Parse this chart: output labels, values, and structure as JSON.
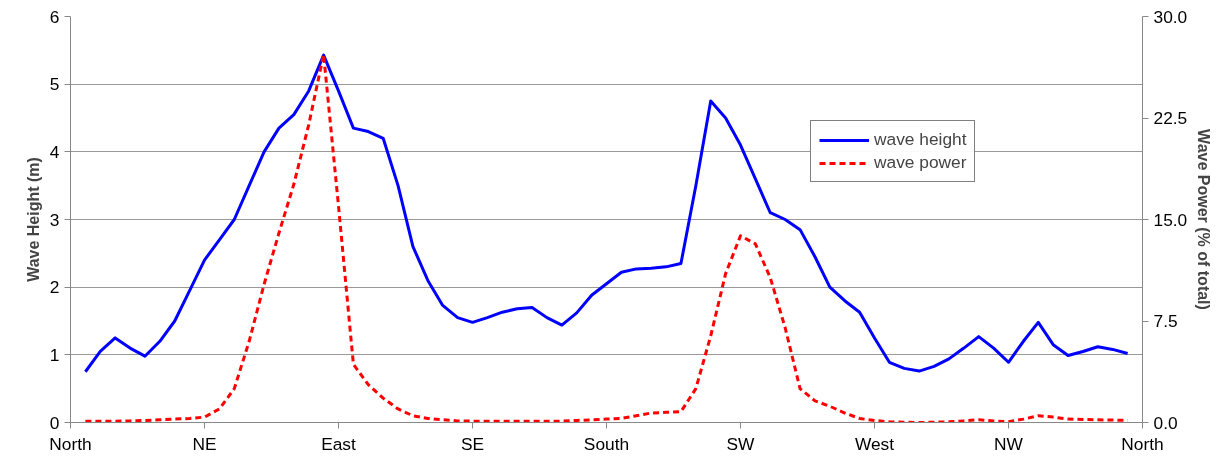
{
  "chart_data": {
    "type": "line",
    "ylabel": "Wave Height (m)",
    "y2label": "Wave Power (% of total)",
    "categories": [
      "North",
      null,
      null,
      null,
      null,
      null,
      null,
      null,
      null,
      "NE",
      null,
      null,
      null,
      null,
      null,
      null,
      null,
      null,
      "East",
      null,
      null,
      null,
      null,
      null,
      null,
      null,
      null,
      "SE",
      null,
      null,
      null,
      null,
      null,
      null,
      null,
      null,
      "South",
      null,
      null,
      null,
      null,
      null,
      null,
      null,
      null,
      "SW",
      null,
      null,
      null,
      null,
      null,
      null,
      null,
      null,
      "West",
      null,
      null,
      null,
      null,
      null,
      null,
      null,
      null,
      "NW",
      null,
      null,
      null,
      null,
      null,
      null,
      null,
      null,
      "North"
    ],
    "series": [
      {
        "name": "wave height",
        "color": "#0000ff",
        "line_style": "solid",
        "values": [
          null,
          0.75,
          1.05,
          1.25,
          1.1,
          0.98,
          1.2,
          1.5,
          1.95,
          2.4,
          2.7,
          3.0,
          3.5,
          4.0,
          4.35,
          4.55,
          4.9,
          5.43,
          4.9,
          4.35,
          4.3,
          4.2,
          3.5,
          2.6,
          2.1,
          1.73,
          1.55,
          1.48,
          1.55,
          1.63,
          1.68,
          1.7,
          1.55,
          1.44,
          1.62,
          1.88,
          2.05,
          2.22,
          2.27,
          2.28,
          2.3,
          2.35,
          3.5,
          4.75,
          4.5,
          4.1,
          3.6,
          3.1,
          3.0,
          2.85,
          2.45,
          2.0,
          1.8,
          1.63,
          1.25,
          0.89,
          0.8,
          0.76,
          0.83,
          0.94,
          1.1,
          1.27,
          1.1,
          0.89,
          1.2,
          1.48,
          1.15,
          0.99,
          1.05,
          1.12,
          1.08,
          1.02,
          null
        ]
      },
      {
        "name": "wave power",
        "color": "#ff0000",
        "line_style": "dashed",
        "axis": "y2",
        "values": [
          null,
          0.1,
          0.1,
          0.1,
          0.12,
          0.15,
          0.2,
          0.25,
          0.3,
          0.4,
          1.0,
          2.5,
          6.0,
          10.2,
          14.0,
          17.6,
          22.0,
          27.2,
          16.0,
          4.3,
          2.8,
          1.8,
          1.0,
          0.5,
          0.3,
          0.2,
          0.12,
          0.1,
          0.1,
          0.1,
          0.1,
          0.1,
          0.1,
          0.1,
          0.15,
          0.2,
          0.25,
          0.3,
          0.5,
          0.7,
          0.75,
          0.8,
          2.5,
          6.4,
          11.0,
          13.8,
          13.2,
          10.7,
          7.0,
          2.5,
          1.6,
          1.2,
          0.7,
          0.3,
          0.15,
          0.05,
          0.02,
          0.0,
          0.02,
          0.05,
          0.12,
          0.2,
          0.12,
          0.05,
          0.25,
          0.5,
          0.4,
          0.25,
          0.22,
          0.2,
          0.18,
          0.15,
          null
        ]
      }
    ],
    "ylim": [
      0,
      6
    ],
    "yticks": [
      0,
      1,
      2,
      3,
      4,
      5,
      6
    ],
    "y2lim": [
      0,
      30
    ],
    "y2ticks": [
      {
        "value": 0,
        "label": "0.0"
      },
      {
        "value": 7.5,
        "label": "7.5"
      },
      {
        "value": 15,
        "label": "15.0"
      },
      {
        "value": 22.5,
        "label": "22.5"
      },
      {
        "value": 30,
        "label": "30.0"
      }
    ],
    "grid": "y",
    "legend": "top right",
    "marker": "none"
  }
}
